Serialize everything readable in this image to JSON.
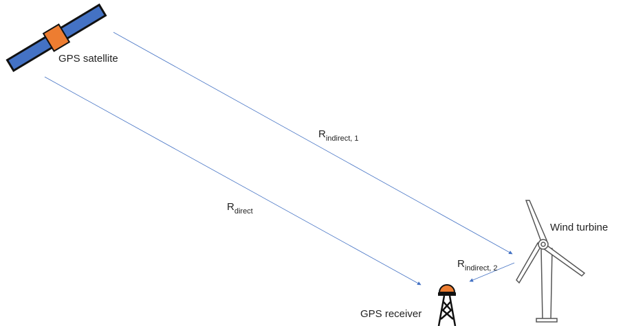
{
  "nodes": [
    {
      "label": "GPS satellite"
    },
    {
      "label": "Wind turbine"
    },
    {
      "label": "GPS receiver"
    }
  ],
  "paths": [
    {
      "symbol": "R",
      "subscript": "direct"
    },
    {
      "symbol": "R",
      "subscript": "indirect, 1"
    },
    {
      "symbol": "R",
      "subscript": "indirect, 2"
    }
  ]
}
